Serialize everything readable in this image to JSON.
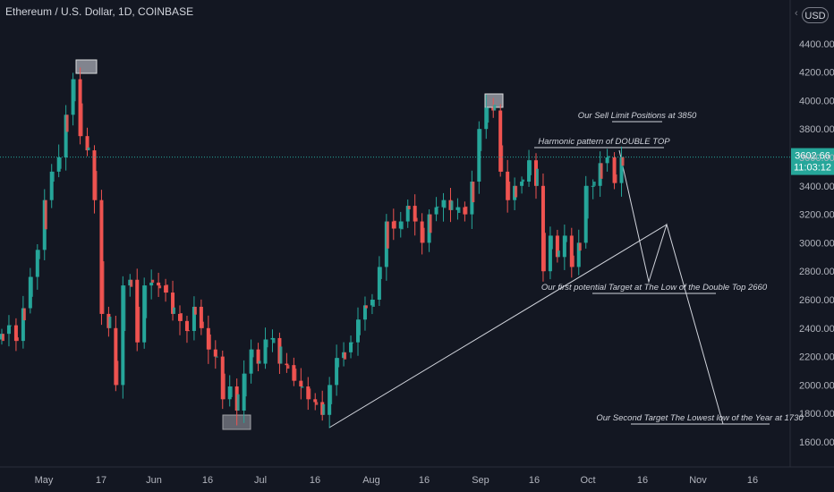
{
  "header": {
    "symbol": "Ethereum / U.S. Dollar, 1D, COINBASE",
    "currency": "USD"
  },
  "price_label": {
    "price": "3602.66",
    "countdown": "11:03:12"
  },
  "colors": {
    "up": "#26a69a",
    "down": "#ef5350",
    "background": "#131722",
    "text": "#b2b5be",
    "annotation": "#d1d4dc",
    "priceline": "#26a69a"
  },
  "chart_data": {
    "type": "candlestick",
    "ylim": [
      1500,
      4560
    ],
    "grid": false,
    "y_ticks": [
      1600,
      1800,
      2000,
      2200,
      2400,
      2600,
      2800,
      3000,
      3200,
      3400,
      3600,
      3800,
      4000,
      4200,
      4400
    ],
    "y_tick_labels": [
      "1600.00",
      "1800.00",
      "2000.00",
      "2200.00",
      "2400.00",
      "2600.00",
      "2800.00",
      "3000.00",
      "3200.00",
      "3400.00",
      "3600.00",
      "3800.00",
      "4000.00",
      "4200.00",
      "4400.00"
    ],
    "x_ticks": [
      "May",
      "17",
      "Jun",
      "16",
      "Jul",
      "16",
      "Aug",
      "16",
      "Sep",
      "16",
      "Oct",
      "16",
      "Nov",
      "16"
    ],
    "x_start": "2021-04-21",
    "x_end": "2021-11-28",
    "last_price": 3602.66,
    "closes": [
      [
        "2021-04-21",
        2360
      ],
      [
        "2021-04-23",
        2420
      ],
      [
        "2021-04-25",
        2310
      ],
      [
        "2021-04-27",
        2540
      ],
      [
        "2021-04-29",
        2760
      ],
      [
        "2021-05-01",
        2950
      ],
      [
        "2021-05-03",
        3300
      ],
      [
        "2021-05-05",
        3500
      ],
      [
        "2021-05-07",
        3600
      ],
      [
        "2021-05-09",
        3900
      ],
      [
        "2021-05-11",
        4150
      ],
      [
        "2021-05-13",
        3750
      ],
      [
        "2021-05-15",
        3650
      ],
      [
        "2021-05-17",
        3300
      ],
      [
        "2021-05-19",
        2500
      ],
      [
        "2021-05-21",
        2400
      ],
      [
        "2021-05-23",
        2000
      ],
      [
        "2021-05-25",
        2700
      ],
      [
        "2021-05-27",
        2740
      ],
      [
        "2021-05-29",
        2300
      ],
      [
        "2021-05-31",
        2700
      ],
      [
        "2021-06-02",
        2720
      ],
      [
        "2021-06-04",
        2700
      ],
      [
        "2021-06-06",
        2650
      ],
      [
        "2021-06-08",
        2500
      ],
      [
        "2021-06-10",
        2450
      ],
      [
        "2021-06-12",
        2380
      ],
      [
        "2021-06-14",
        2550
      ],
      [
        "2021-06-16",
        2400
      ],
      [
        "2021-06-18",
        2250
      ],
      [
        "2021-06-20",
        2200
      ],
      [
        "2021-06-22",
        1900
      ],
      [
        "2021-06-24",
        1990
      ],
      [
        "2021-06-26",
        1820
      ],
      [
        "2021-06-28",
        2080
      ],
      [
        "2021-06-30",
        2250
      ],
      [
        "2021-07-02",
        2150
      ],
      [
        "2021-07-04",
        2320
      ],
      [
        "2021-07-06",
        2330
      ],
      [
        "2021-07-08",
        2150
      ],
      [
        "2021-07-10",
        2140
      ],
      [
        "2021-07-12",
        2030
      ],
      [
        "2021-07-14",
        1990
      ],
      [
        "2021-07-16",
        1900
      ],
      [
        "2021-07-18",
        1880
      ],
      [
        "2021-07-20",
        1790
      ],
      [
        "2021-07-22",
        2000
      ],
      [
        "2021-07-24",
        2190
      ],
      [
        "2021-07-26",
        2230
      ],
      [
        "2021-07-28",
        2300
      ],
      [
        "2021-07-30",
        2460
      ],
      [
        "2021-08-01",
        2560
      ],
      [
        "2021-08-03",
        2600
      ],
      [
        "2021-08-05",
        2830
      ],
      [
        "2021-08-07",
        3150
      ],
      [
        "2021-08-09",
        3100
      ],
      [
        "2021-08-11",
        3150
      ],
      [
        "2021-08-13",
        3260
      ],
      [
        "2021-08-15",
        3150
      ],
      [
        "2021-08-17",
        3000
      ],
      [
        "2021-08-19",
        3200
      ],
      [
        "2021-08-21",
        3250
      ],
      [
        "2021-08-23",
        3300
      ],
      [
        "2021-08-25",
        3230
      ],
      [
        "2021-08-27",
        3250
      ],
      [
        "2021-08-29",
        3200
      ],
      [
        "2021-08-31",
        3430
      ],
      [
        "2021-09-02",
        3800
      ],
      [
        "2021-09-04",
        3950
      ],
      [
        "2021-09-06",
        3930
      ],
      [
        "2021-09-08",
        3500
      ],
      [
        "2021-09-10",
        3300
      ],
      [
        "2021-09-12",
        3400
      ],
      [
        "2021-09-14",
        3430
      ],
      [
        "2021-09-16",
        3580
      ],
      [
        "2021-09-18",
        3400
      ],
      [
        "2021-09-20",
        2800
      ],
      [
        "2021-09-22",
        3050
      ],
      [
        "2021-09-24",
        2900
      ],
      [
        "2021-09-26",
        3050
      ],
      [
        "2021-09-28",
        2830
      ],
      [
        "2021-09-30",
        3000
      ],
      [
        "2021-10-02",
        3400
      ],
      [
        "2021-10-04",
        3400
      ],
      [
        "2021-10-06",
        3560
      ],
      [
        "2021-10-08",
        3600
      ],
      [
        "2021-10-10",
        3420
      ],
      [
        "2021-10-12",
        3602.66
      ]
    ],
    "annotations": [
      {
        "text": "Our Sell Limit Positions at 3850",
        "price": 3850
      },
      {
        "text": "Harmonic pattern of DOUBLE TOP",
        "price": 3680
      },
      {
        "text": "Our first potential Target at The Low of the Double Top 2660",
        "price": 2660
      },
      {
        "text": "Our Second Target The Lowest low of the Year at 1730",
        "price": 1730
      }
    ]
  }
}
